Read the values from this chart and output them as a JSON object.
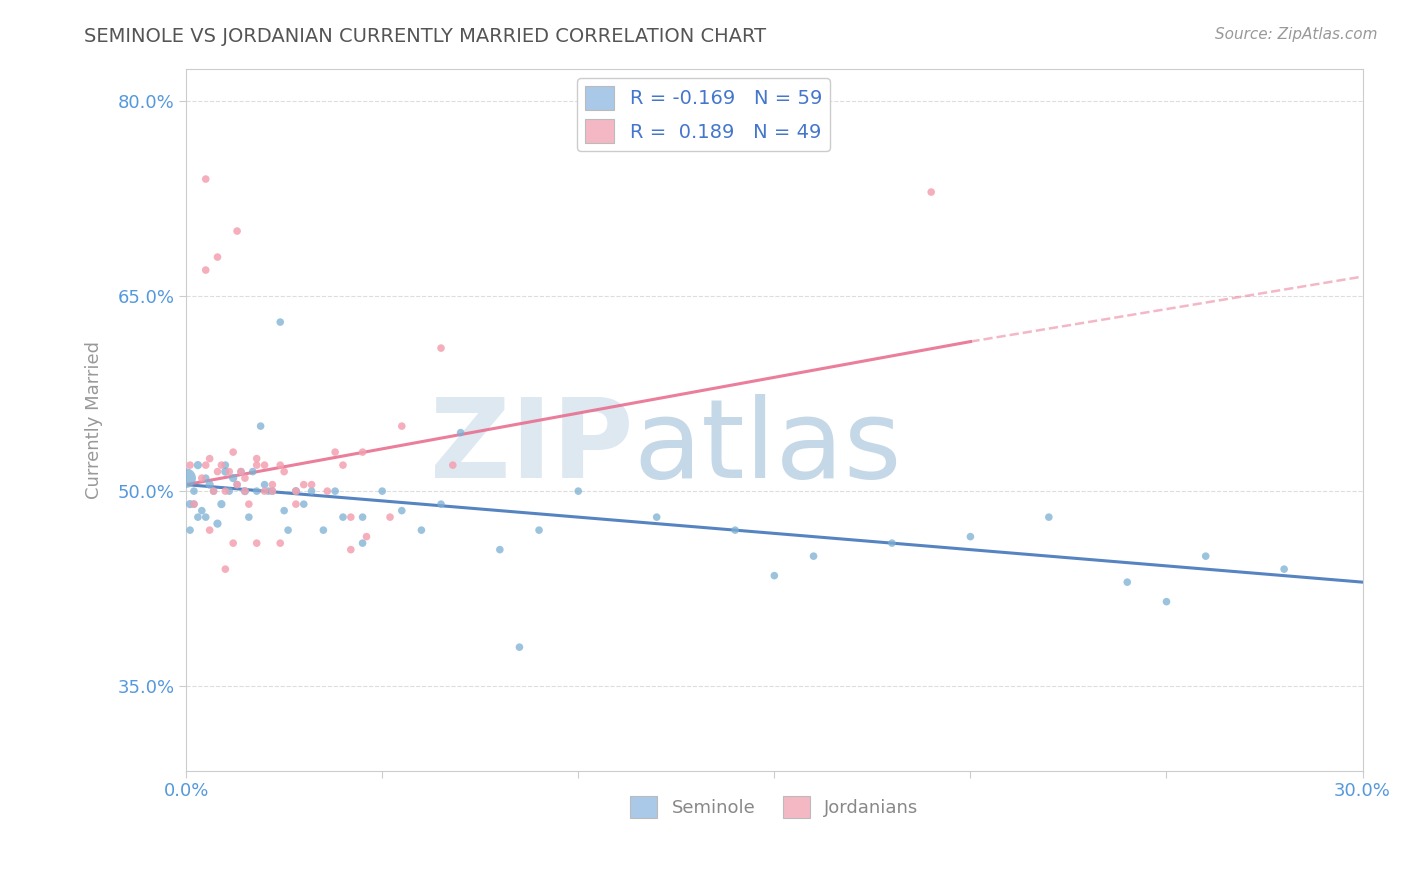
{
  "title": "SEMINOLE VS JORDANIAN CURRENTLY MARRIED CORRELATION CHART",
  "source": "Source: ZipAtlas.com",
  "ylabel": "Currently Married",
  "xlabel": "",
  "xlim": [
    0.0,
    0.3
  ],
  "ylim": [
    0.285,
    0.825
  ],
  "yticks": [
    0.35,
    0.5,
    0.65,
    0.8
  ],
  "ytick_labels": [
    "35.0%",
    "50.0%",
    "65.0%",
    "80.0%"
  ],
  "xticks": [
    0.0,
    0.05,
    0.1,
    0.15,
    0.2,
    0.25,
    0.3
  ],
  "xtick_labels": [
    "0.0%",
    "",
    "",
    "",
    "",
    "",
    "30.0%"
  ],
  "seminole_color": "#7bafd4",
  "jordanian_color": "#f4a0b0",
  "seminole_line_color": "#4477bb",
  "jordanian_line_color": "#e87090",
  "legend_seminole_color": "#aac8e8",
  "legend_jordanian_color": "#f4b8c4",
  "R_seminole": -0.169,
  "N_seminole": 59,
  "R_jordanian": 0.189,
  "N_jordanian": 49,
  "title_color": "#555555",
  "axis_color": "#cccccc",
  "grid_color": "#dddddd",
  "legend_text_color": "#4477cc",
  "tick_color": "#5599dd",
  "seminole_points_x": [
    0.0,
    0.001,
    0.002,
    0.003,
    0.004,
    0.005,
    0.006,
    0.007,
    0.008,
    0.009,
    0.01,
    0.01,
    0.011,
    0.012,
    0.013,
    0.014,
    0.015,
    0.016,
    0.017,
    0.018,
    0.019,
    0.02,
    0.021,
    0.022,
    0.024,
    0.025,
    0.026,
    0.028,
    0.03,
    0.032,
    0.035,
    0.038,
    0.04,
    0.045,
    0.05,
    0.055,
    0.06,
    0.065,
    0.08,
    0.09,
    0.1,
    0.12,
    0.14,
    0.16,
    0.2,
    0.22,
    0.24,
    0.26,
    0.045,
    0.07,
    0.15,
    0.18,
    0.085,
    0.25,
    0.28,
    0.001,
    0.002,
    0.003,
    0.005
  ],
  "seminole_points_y": [
    0.51,
    0.49,
    0.5,
    0.52,
    0.485,
    0.51,
    0.505,
    0.5,
    0.475,
    0.49,
    0.52,
    0.515,
    0.5,
    0.51,
    0.505,
    0.515,
    0.5,
    0.48,
    0.515,
    0.5,
    0.55,
    0.505,
    0.5,
    0.5,
    0.63,
    0.485,
    0.47,
    0.5,
    0.49,
    0.5,
    0.47,
    0.5,
    0.48,
    0.48,
    0.5,
    0.485,
    0.47,
    0.49,
    0.455,
    0.47,
    0.5,
    0.48,
    0.47,
    0.45,
    0.465,
    0.48,
    0.43,
    0.45,
    0.46,
    0.545,
    0.435,
    0.46,
    0.38,
    0.415,
    0.44,
    0.47,
    0.49,
    0.48,
    0.48
  ],
  "seminole_sizes": [
    200,
    35,
    30,
    35,
    30,
    30,
    35,
    30,
    35,
    35,
    30,
    35,
    30,
    35,
    30,
    30,
    35,
    30,
    30,
    30,
    30,
    30,
    30,
    30,
    30,
    30,
    30,
    35,
    30,
    30,
    30,
    30,
    30,
    30,
    30,
    30,
    30,
    30,
    30,
    30,
    30,
    30,
    30,
    30,
    30,
    30,
    30,
    30,
    30,
    30,
    30,
    30,
    30,
    30,
    30,
    30,
    30,
    30,
    30
  ],
  "jordanian_points_x": [
    0.001,
    0.002,
    0.004,
    0.005,
    0.006,
    0.007,
    0.008,
    0.009,
    0.01,
    0.011,
    0.012,
    0.013,
    0.014,
    0.015,
    0.016,
    0.018,
    0.02,
    0.022,
    0.025,
    0.028,
    0.032,
    0.038,
    0.046,
    0.055,
    0.042,
    0.052,
    0.065,
    0.042,
    0.068,
    0.022,
    0.018,
    0.013,
    0.008,
    0.005,
    0.028,
    0.04,
    0.005,
    0.01,
    0.015,
    0.02,
    0.024,
    0.006,
    0.012,
    0.018,
    0.024,
    0.03,
    0.036,
    0.045,
    0.19
  ],
  "jordanian_points_y": [
    0.52,
    0.49,
    0.51,
    0.52,
    0.525,
    0.5,
    0.515,
    0.52,
    0.5,
    0.515,
    0.53,
    0.505,
    0.515,
    0.51,
    0.49,
    0.525,
    0.52,
    0.505,
    0.515,
    0.49,
    0.505,
    0.53,
    0.465,
    0.55,
    0.48,
    0.48,
    0.61,
    0.455,
    0.52,
    0.5,
    0.52,
    0.7,
    0.68,
    0.67,
    0.5,
    0.52,
    0.74,
    0.44,
    0.5,
    0.5,
    0.46,
    0.47,
    0.46,
    0.46,
    0.52,
    0.505,
    0.5,
    0.53,
    0.73
  ],
  "jordanian_sizes": [
    30,
    30,
    30,
    30,
    30,
    30,
    30,
    30,
    30,
    30,
    30,
    30,
    30,
    30,
    30,
    30,
    30,
    30,
    30,
    30,
    30,
    30,
    30,
    30,
    30,
    30,
    30,
    30,
    30,
    30,
    30,
    30,
    30,
    30,
    30,
    30,
    30,
    30,
    30,
    30,
    30,
    30,
    30,
    30,
    30,
    30,
    30,
    30,
    30
  ]
}
